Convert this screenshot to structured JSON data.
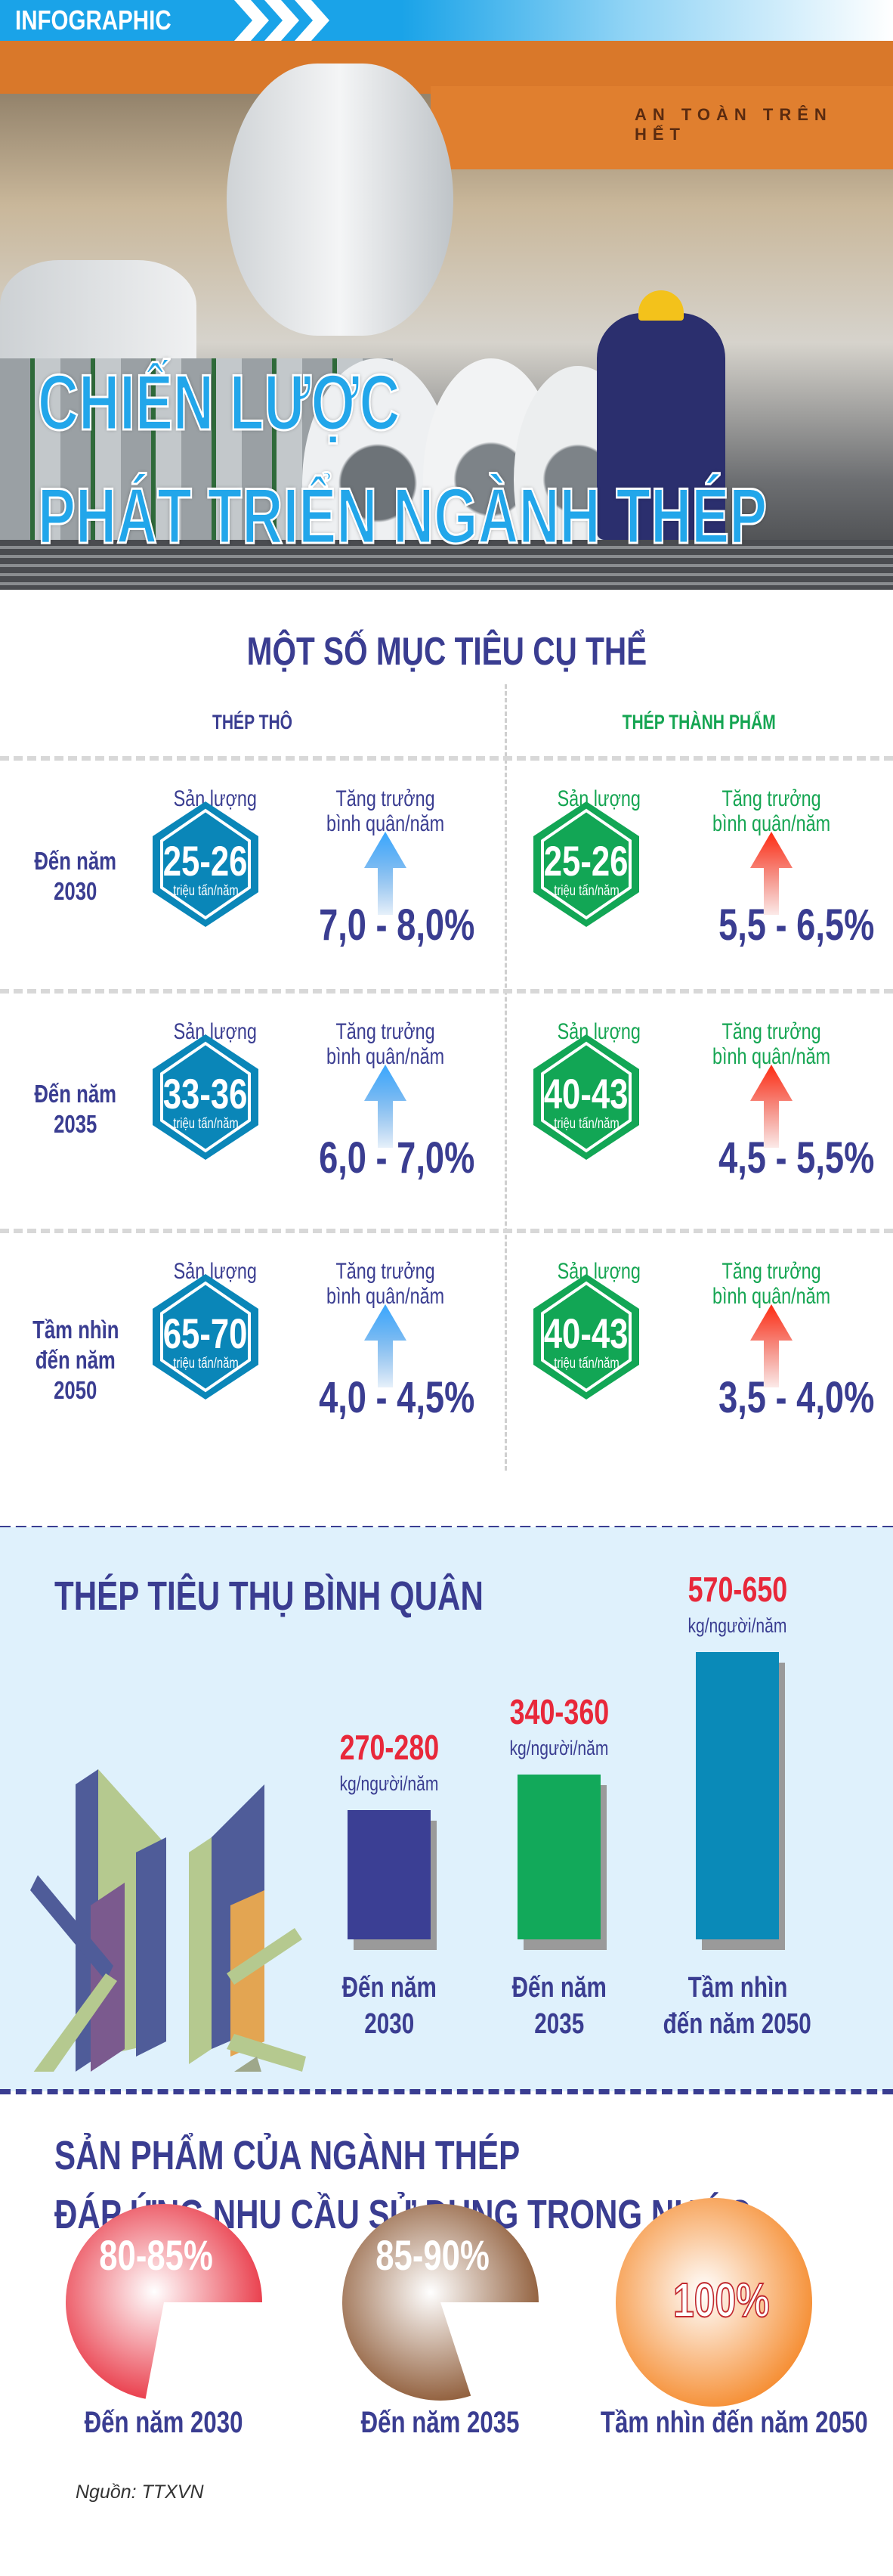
{
  "header": {
    "tag": "INFOGRAPHIC",
    "title_line1": "CHIẾN LƯỢC",
    "title_line2": "PHÁT TRIỂN NGÀNH THÉP"
  },
  "photo": {
    "banner_text": "AN TOÀN TRÊN HẾT"
  },
  "targets": {
    "title": "MỘT SỐ MỤC TIÊU CỤ THỂ",
    "col_left": "THÉP THÔ",
    "col_right": "THÉP THÀNH PHẨM",
    "output_label": "Sản lượng",
    "growth_label_1": "Tăng trưởng",
    "growth_label_2": "bình quân/năm",
    "unit": "triệu tấn/năm",
    "rows": [
      {
        "period_1": "Đến năm",
        "period_2": "2030",
        "crude_output": "25-26",
        "crude_growth": "7,0 - 8,0%",
        "finished_output": "25-26",
        "finished_growth": "5,5 - 6,5%"
      },
      {
        "period_1": "Đến năm",
        "period_2": "2035",
        "crude_output": "33-36",
        "crude_growth": "6,0 - 7,0%",
        "finished_output": "40-43",
        "finished_growth": "4,5 - 5,5%"
      },
      {
        "period_1": "Tầm nhìn",
        "period_2": "đến năm",
        "period_3": "2050",
        "crude_output": "65-70",
        "crude_growth": "4,0 - 4,5%",
        "finished_output": "40-43",
        "finished_growth": "3,5 - 4,0%"
      }
    ]
  },
  "chart_data": [
    {
      "type": "bar",
      "title": "THÉP TIÊU THỤ BÌNH QUÂN",
      "unit": "kg/người/năm",
      "categories": [
        [
          "Đến năm",
          "2030"
        ],
        [
          "Đến năm",
          "2035"
        ],
        [
          "Tầm nhìn",
          "đến năm 2050"
        ]
      ],
      "values": [
        [
          270,
          280
        ],
        [
          340,
          360
        ],
        [
          570,
          650
        ]
      ],
      "value_labels": [
        "270-280",
        "340-360",
        "570-650"
      ],
      "colors": [
        "#3b3f94",
        "#12a95a",
        "#0a8ab8"
      ]
    },
    {
      "type": "pie",
      "title_line1": "SẢN PHẨM CỦA NGÀNH THÉP",
      "title_line2": "ĐÁP ỨNG NHU CẦU SỬ DỤNG TRONG NƯỚC",
      "categories": [
        "Đến năm 2030",
        "Đến năm 2035",
        "Tầm nhìn đến năm 2050"
      ],
      "values": [
        [
          80,
          85
        ],
        [
          85,
          90
        ],
        [
          100,
          100
        ]
      ],
      "value_labels": [
        "80-85%",
        "85-90%",
        "100%"
      ],
      "colors": [
        "#e8303f",
        "#8a5530",
        "#f5892a"
      ]
    }
  ],
  "colors": {
    "navy": "#3a3d91",
    "green": "#15a552",
    "blue": "#0a86b8",
    "red": "#e8283a",
    "cyan": "#22a6ea"
  },
  "source": "Nguồn: TTXVN"
}
